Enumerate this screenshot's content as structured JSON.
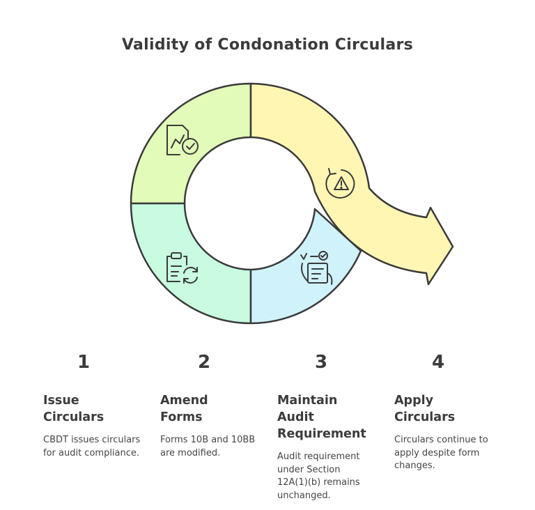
{
  "title": "Validity of Condonation Circulars",
  "colors": {
    "segment_1": "#e2fbb8",
    "segment_2": "#c8fbe0",
    "segment_3": "#d0f2fb",
    "segment_4": "#fff6b3",
    "stroke": "#3a3a3a"
  },
  "segments": [
    {
      "icon": "document-chart-check-icon"
    },
    {
      "icon": "clipboard-refresh-icon"
    },
    {
      "icon": "hand-checklist-icon"
    },
    {
      "icon": "rotate-warning-icon"
    }
  ],
  "steps": [
    {
      "number": "1",
      "title_line1": "Issue",
      "title_line2": "Circulars",
      "title_line3": "",
      "description": "CBDT issues circulars for audit compliance."
    },
    {
      "number": "2",
      "title_line1": "Amend",
      "title_line2": "Forms",
      "title_line3": "",
      "description": "Forms 10B and 10BB are modified."
    },
    {
      "number": "3",
      "title_line1": "Maintain",
      "title_line2": "Audit",
      "title_line3": "Requirement",
      "description": "Audit requirement under Section 12A(1)(b) remains unchanged."
    },
    {
      "number": "4",
      "title_line1": "Apply",
      "title_line2": "Circulars",
      "title_line3": "",
      "description": "Circulars continue to apply despite form changes."
    }
  ]
}
